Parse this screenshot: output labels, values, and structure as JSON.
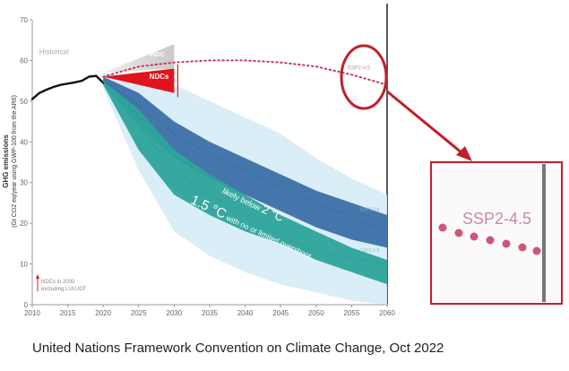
{
  "caption": "United Nations Framework Convention on Climate Change, Oct 2022",
  "chart_data": {
    "type": "line",
    "ylabel": "GHG emissions",
    "ylabel_sub": "(Gt CO2 eq/year using GWP-100 from the AR6)",
    "xlim": [
      2010,
      2060
    ],
    "ylim": [
      0,
      70
    ],
    "x_ticks": [
      "2010",
      "2015",
      "2020",
      "2025",
      "2030",
      "2035",
      "2040",
      "2045",
      "2050",
      "2055",
      "2060"
    ],
    "y_ticks": [
      "0",
      "10",
      "20",
      "30",
      "40",
      "50",
      "60",
      "70"
    ],
    "grid": false,
    "annotations": {
      "historical": "Historical",
      "indc": "INDC",
      "ndcs": "NDCs",
      "ssp245": "SSP2-4.5",
      "ssp26": "SSP1-2.6",
      "ssp19": "SSP1-1.9",
      "below2_prefix": "likely below ",
      "below2_value": "2 °C",
      "limit15_value": "1.5 °C",
      "limit15_suffix": " with no or limited overshoot",
      "ndc_note_line1": "NDCs in 2030",
      "ndc_note_line2": "excluding LULUCF",
      "zoom_label": "SSP2-4.5"
    },
    "series": [
      {
        "name": "Historical",
        "x": [
          2010,
          2011,
          2012,
          2013,
          2014,
          2015,
          2016,
          2017,
          2018,
          2019,
          2020
        ],
        "y": [
          50.5,
          52,
          52.8,
          53.5,
          54,
          54.3,
          54.6,
          55,
          56,
          56.2,
          54.5
        ]
      },
      {
        "name": "SSP2-4.5",
        "x": [
          2020,
          2025,
          2030,
          2035,
          2040,
          2045,
          2050,
          2055,
          2060
        ],
        "y": [
          56,
          58.5,
          59.5,
          60,
          60,
          59.5,
          58.5,
          56.5,
          54
        ]
      },
      {
        "name": "SSP1-2.6",
        "x": [
          2020,
          2025,
          2030,
          2035,
          2040,
          2045,
          2050,
          2055,
          2060
        ],
        "y": [
          55,
          49,
          42,
          37,
          33,
          29,
          25,
          21.5,
          18
        ]
      },
      {
        "name": "SSP1-1.9",
        "x": [
          2020,
          2025,
          2030,
          2035,
          2040,
          2045,
          2050,
          2055,
          2060
        ],
        "y": [
          55,
          44,
          33,
          27,
          22,
          17,
          13,
          11.5,
          10
        ]
      }
    ],
    "bands": [
      {
        "name": "likely below 2 °C",
        "color": "#3d6fa6",
        "x": [
          2020,
          2025,
          2030,
          2035,
          2040,
          2045,
          2050,
          2055,
          2060
        ],
        "lower": [
          54,
          44,
          36,
          31,
          27,
          23,
          19,
          16,
          14
        ],
        "upper": [
          56,
          52,
          45,
          40,
          36,
          32,
          28,
          25,
          22
        ]
      },
      {
        "name": "1.5 °C with no or limited overshoot",
        "color": "#2ea39a",
        "x": [
          2020,
          2025,
          2030,
          2035,
          2040,
          2045,
          2050,
          2055,
          2060
        ],
        "lower": [
          54,
          38,
          27,
          22,
          18,
          15,
          11,
          8,
          5
        ],
        "upper": [
          55,
          48,
          38,
          32,
          27,
          22,
          18,
          14,
          11
        ]
      }
    ],
    "wide_ranges": {
      "x": [
        2020,
        2025,
        2030,
        2035,
        2040,
        2045,
        2050,
        2055,
        2060
      ],
      "lower": [
        53,
        33,
        18,
        12,
        8,
        5,
        3,
        1,
        0
      ],
      "upper": [
        57,
        55,
        54,
        50,
        46,
        42,
        36,
        31,
        27
      ]
    },
    "ndc_range": {
      "x": [
        2020,
        2030
      ],
      "lower": [
        56,
        52
      ],
      "upper": [
        56,
        58
      ]
    },
    "indc_range": {
      "x": [
        2020,
        2030
      ],
      "lower": [
        57,
        58
      ],
      "upper": [
        57,
        64
      ]
    },
    "colors": {
      "historical": "#111111",
      "ssp245": "#c8385a",
      "ssp26": "#3d6fa6",
      "ssp19": "#2ea39a",
      "ndc": "#e0141e",
      "indc": "#cccccc",
      "wide_band": "#d6ecf6",
      "highlight_circle": "#c0202a"
    }
  }
}
